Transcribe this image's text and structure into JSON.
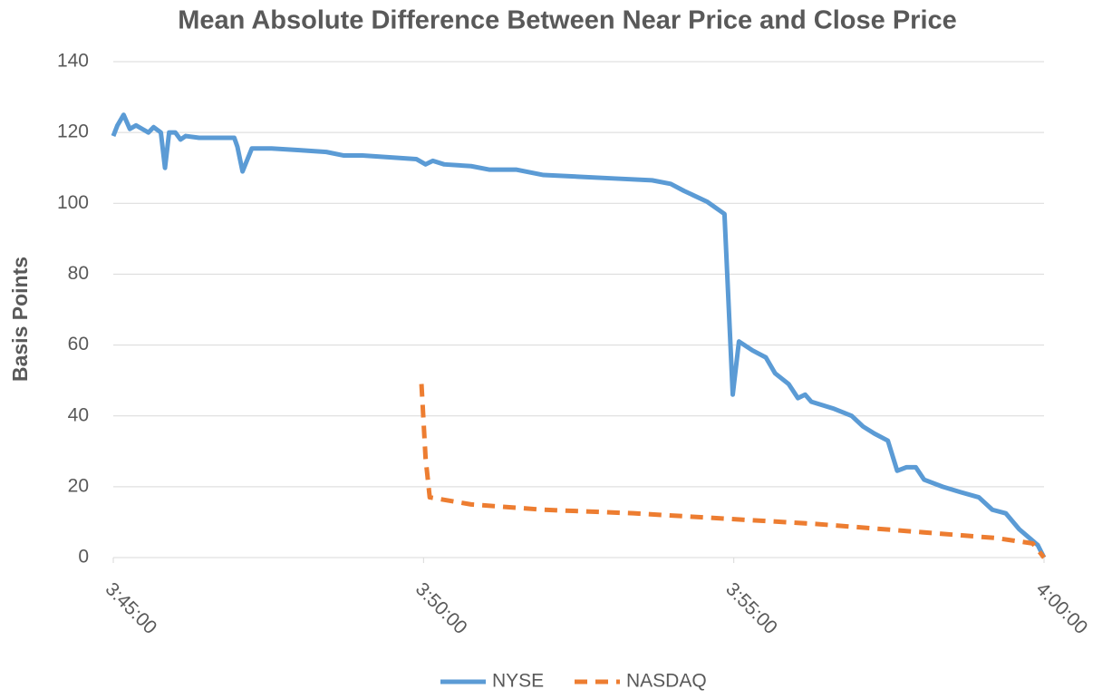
{
  "chart_data": {
    "type": "line",
    "title": "Mean Absolute Difference Between Near Price and Close Price",
    "ylabel": "Basis Points",
    "ylim": [
      0,
      140
    ],
    "yticks": [
      0,
      20,
      40,
      60,
      80,
      100,
      120,
      140
    ],
    "xlim": [
      "3:45:00",
      "4:00:00"
    ],
    "xticks": [
      "3:45:00",
      "3:50:00",
      "3:55:00",
      "4:00:00"
    ],
    "grid": true,
    "legend": "bottom",
    "series": [
      {
        "name": "NYSE",
        "color": "#5b9bd5",
        "dashed": false,
        "x": [
          "3:45:00",
          "3:45:04",
          "3:45:10",
          "3:45:16",
          "3:45:22",
          "3:45:28",
          "3:45:34",
          "3:45:39",
          "3:45:46",
          "3:45:50",
          "3:45:54",
          "3:46:00",
          "3:46:05",
          "3:46:10",
          "3:46:23",
          "3:46:41",
          "3:46:57",
          "3:47:00",
          "3:47:05",
          "3:47:14",
          "3:47:33",
          "3:48:00",
          "3:48:26",
          "3:48:43",
          "3:49:01",
          "3:49:27",
          "3:49:53",
          "3:50:02",
          "3:50:09",
          "3:50:20",
          "3:50:46",
          "3:51:04",
          "3:51:30",
          "3:51:56",
          "3:52:31",
          "3:53:06",
          "3:53:41",
          "3:53:59",
          "3:54:12",
          "3:54:34",
          "3:54:51",
          "3:54:59",
          "3:55:05",
          "3:55:18",
          "3:55:31",
          "3:55:40",
          "3:55:53",
          "3:56:02",
          "3:56:09",
          "3:56:15",
          "3:56:37",
          "3:56:54",
          "3:57:05",
          "3:57:16",
          "3:57:29",
          "3:57:38",
          "3:57:47",
          "3:57:56",
          "3:58:04",
          "3:58:22",
          "3:58:39",
          "3:58:57",
          "3:59:10",
          "3:59:23",
          "3:59:36",
          "3:59:54",
          "4:00:00"
        ],
        "values": [
          119,
          122,
          125,
          121,
          122,
          121,
          120,
          121.5,
          120,
          110,
          120,
          120,
          118,
          119,
          118.5,
          118.5,
          118.5,
          116,
          109,
          115.5,
          115.5,
          115,
          114.5,
          113.5,
          113.5,
          113,
          112.5,
          111,
          112,
          111,
          110.5,
          109.5,
          109.5,
          108,
          107.5,
          107,
          106.5,
          105.5,
          103.5,
          100.5,
          97,
          46,
          61,
          58.5,
          56.5,
          52,
          49,
          45,
          46,
          44,
          42,
          40,
          37,
          35,
          33,
          24.5,
          25.5,
          25.5,
          22,
          20,
          18.5,
          17,
          13.5,
          12.5,
          8,
          3.5,
          0
        ]
      },
      {
        "name": "NASDAQ",
        "color": "#ed7d31",
        "dashed": true,
        "x": [
          "3:49:58",
          "3:50:02",
          "3:50:06",
          "3:50:46",
          "3:51:56",
          "3:53:23",
          "3:54:51",
          "3:56:19",
          "3:57:47",
          "3:59:14",
          "3:59:49",
          "4:00:00"
        ],
        "values": [
          49,
          28,
          17,
          15,
          13.5,
          12.5,
          11,
          9.5,
          7.5,
          5.5,
          4,
          0
        ]
      }
    ]
  }
}
